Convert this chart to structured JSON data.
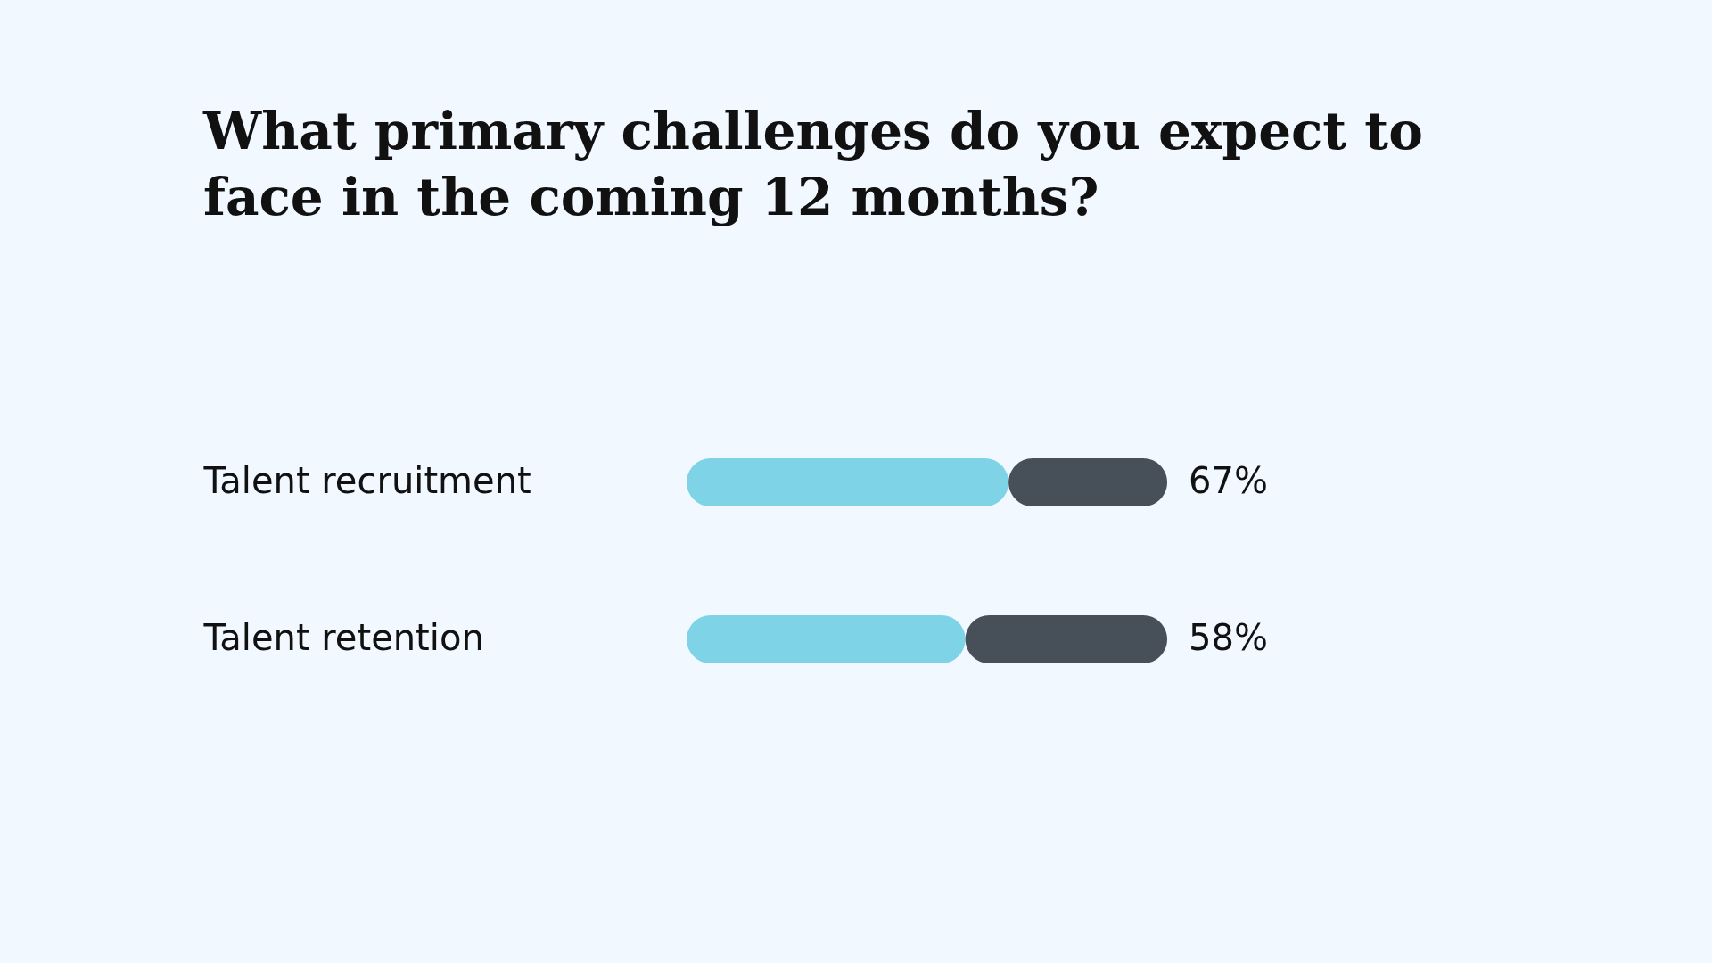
{
  "chart_data": {
    "type": "bar",
    "orientation": "horizontal",
    "stacked": true,
    "title": "What primary challenges do you expect to face in the coming 12 months?",
    "categories": [
      "Talent recruitment",
      "Talent retention"
    ],
    "series": [
      {
        "color": "#7fd3e6",
        "values": [
          67,
          58
        ],
        "value_labels": [
          "67%",
          "58%"
        ]
      },
      {
        "color": "#474f58",
        "values": [
          33,
          42
        ]
      }
    ],
    "xlim": [
      0,
      100
    ],
    "tick_labels": "y",
    "grid": false,
    "legend": false
  }
}
